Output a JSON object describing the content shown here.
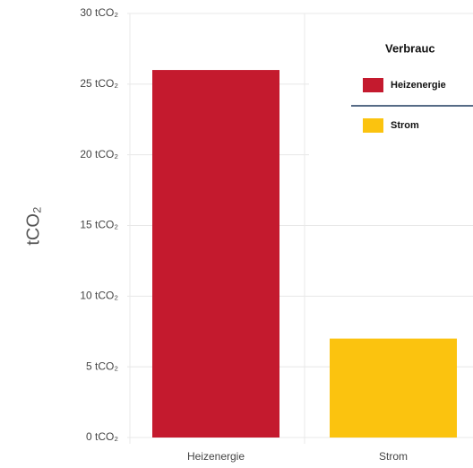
{
  "chart_data": {
    "type": "bar",
    "y_axis_label": "tCO₂",
    "categories": [
      "Heizenergie",
      "Strom"
    ],
    "values": [
      26,
      7
    ],
    "colors": [
      "#c41a2e",
      "#fbc30f"
    ],
    "ylim": [
      0,
      30
    ],
    "yticks": [
      {
        "value": 0,
        "label": "0 tCO₂"
      },
      {
        "value": 5,
        "label": "5 tCO₂"
      },
      {
        "value": 10,
        "label": "10 tCO₂"
      },
      {
        "value": 15,
        "label": "15 tCO₂"
      },
      {
        "value": 20,
        "label": "20 tCO₂"
      },
      {
        "value": 25,
        "label": "25 tCO₂"
      },
      {
        "value": 30,
        "label": "30 tCO₂"
      }
    ],
    "grid": true,
    "legend": {
      "title": "Verbrauc",
      "position": "top-right"
    }
  }
}
